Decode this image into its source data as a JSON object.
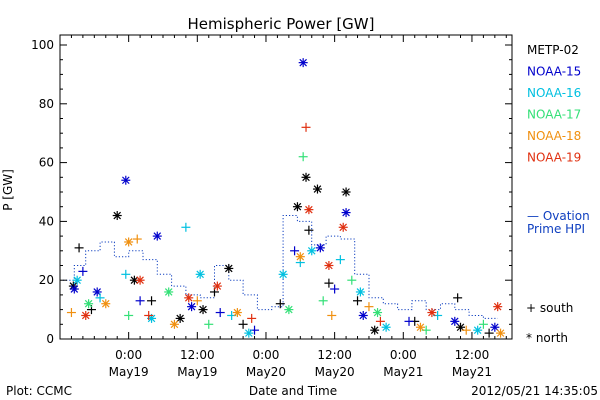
{
  "chart_data": {
    "type": "scatter",
    "title": "Hemispheric Power [GW]",
    "ylabel": "P [GW]",
    "xlabel": "Date and Time",
    "ylim": [
      0,
      100
    ],
    "yticks": [
      0,
      20,
      40,
      60,
      80,
      100
    ],
    "xticks": [
      {
        "t": "2012-05-19 00:00",
        "time": "0:00",
        "date": "May19"
      },
      {
        "t": "2012-05-19 12:00",
        "time": "12:00",
        "date": "May19"
      },
      {
        "t": "2012-05-20 00:00",
        "time": "0:00",
        "date": "May20"
      },
      {
        "t": "2012-05-20 12:00",
        "time": "12:00",
        "date": "May20"
      },
      {
        "t": "2012-05-21 00:00",
        "time": "0:00",
        "date": "May21"
      },
      {
        "t": "2012-05-21 12:00",
        "time": "12:00",
        "date": "May21"
      }
    ],
    "grid": false,
    "legend_position": "right",
    "series": [
      {
        "name": "METP-02",
        "color": "#000000",
        "points": [
          {
            "x": "2012-05-18 22:00",
            "y": 42,
            "m": "north"
          },
          {
            "x": "2012-05-18 15:20",
            "y": 31,
            "m": "south"
          },
          {
            "x": "2012-05-18 14:20",
            "y": 18,
            "m": "north"
          },
          {
            "x": "2012-05-18 17:30",
            "y": 10,
            "m": "south"
          },
          {
            "x": "2012-05-19 01:00",
            "y": 20,
            "m": "north"
          },
          {
            "x": "2012-05-19 04:00",
            "y": 13,
            "m": "south"
          },
          {
            "x": "2012-05-19 09:00",
            "y": 7,
            "m": "north"
          },
          {
            "x": "2012-05-19 15:00",
            "y": 16,
            "m": "south"
          },
          {
            "x": "2012-05-19 17:30",
            "y": 24,
            "m": "north"
          },
          {
            "x": "2012-05-19 20:00",
            "y": 5,
            "m": "south"
          },
          {
            "x": "2012-05-20 05:30",
            "y": 45,
            "m": "north"
          },
          {
            "x": "2012-05-20 07:00",
            "y": 55,
            "m": "north"
          },
          {
            "x": "2012-05-20 07:30",
            "y": 37,
            "m": "south"
          },
          {
            "x": "2012-05-20 09:00",
            "y": 51,
            "m": "north"
          },
          {
            "x": "2012-05-20 11:00",
            "y": 19,
            "m": "south"
          },
          {
            "x": "2012-05-20 14:00",
            "y": 50,
            "m": "north"
          },
          {
            "x": "2012-05-20 16:00",
            "y": 13,
            "m": "south"
          },
          {
            "x": "2012-05-20 19:00",
            "y": 3,
            "m": "north"
          },
          {
            "x": "2012-05-21 02:00",
            "y": 6,
            "m": "south"
          },
          {
            "x": "2012-05-21 10:00",
            "y": 4,
            "m": "north"
          },
          {
            "x": "2012-05-21 15:00",
            "y": 2,
            "m": "south"
          },
          {
            "x": "2012-05-21 09:30",
            "y": 14,
            "m": "south"
          },
          {
            "x": "2012-05-20 02:30",
            "y": 12,
            "m": "south"
          },
          {
            "x": "2012-05-19 13:00",
            "y": 10,
            "m": "north"
          }
        ]
      },
      {
        "name": "NOAA-15",
        "color": "#0000cc",
        "points": [
          {
            "x": "2012-05-18 23:30",
            "y": 54,
            "m": "north"
          },
          {
            "x": "2012-05-19 05:00",
            "y": 35,
            "m": "north"
          },
          {
            "x": "2012-05-18 14:30",
            "y": 17,
            "m": "north"
          },
          {
            "x": "2012-05-18 16:00",
            "y": 23,
            "m": "south"
          },
          {
            "x": "2012-05-18 18:30",
            "y": 16,
            "m": "north"
          },
          {
            "x": "2012-05-19 02:00",
            "y": 13,
            "m": "south"
          },
          {
            "x": "2012-05-19 11:00",
            "y": 11,
            "m": "north"
          },
          {
            "x": "2012-05-19 16:00",
            "y": 9,
            "m": "south"
          },
          {
            "x": "2012-05-20 05:00",
            "y": 30,
            "m": "south"
          },
          {
            "x": "2012-05-20 06:30",
            "y": 94,
            "m": "north"
          },
          {
            "x": "2012-05-20 09:30",
            "y": 31,
            "m": "north"
          },
          {
            "x": "2012-05-20 14:00",
            "y": 43,
            "m": "north"
          },
          {
            "x": "2012-05-20 12:00",
            "y": 17,
            "m": "south"
          },
          {
            "x": "2012-05-20 17:00",
            "y": 8,
            "m": "north"
          },
          {
            "x": "2012-05-21 01:00",
            "y": 6,
            "m": "south"
          },
          {
            "x": "2012-05-21 09:00",
            "y": 6,
            "m": "north"
          },
          {
            "x": "2012-05-21 16:00",
            "y": 4,
            "m": "north"
          },
          {
            "x": "2012-05-19 22:00",
            "y": 3,
            "m": "south"
          }
        ]
      },
      {
        "name": "NOAA-16",
        "color": "#00c0e0",
        "points": [
          {
            "x": "2012-05-18 23:30",
            "y": 22,
            "m": "south"
          },
          {
            "x": "2012-05-19 10:00",
            "y": 38,
            "m": "south"
          },
          {
            "x": "2012-05-18 15:00",
            "y": 20,
            "m": "north"
          },
          {
            "x": "2012-05-18 19:00",
            "y": 14,
            "m": "south"
          },
          {
            "x": "2012-05-19 04:00",
            "y": 7,
            "m": "north"
          },
          {
            "x": "2012-05-19 12:30",
            "y": 22,
            "m": "north"
          },
          {
            "x": "2012-05-19 18:00",
            "y": 8,
            "m": "south"
          },
          {
            "x": "2012-05-20 03:00",
            "y": 22,
            "m": "north"
          },
          {
            "x": "2012-05-20 06:00",
            "y": 26,
            "m": "south"
          },
          {
            "x": "2012-05-20 08:00",
            "y": 30,
            "m": "north"
          },
          {
            "x": "2012-05-20 13:00",
            "y": 27,
            "m": "south"
          },
          {
            "x": "2012-05-20 16:30",
            "y": 16,
            "m": "north"
          },
          {
            "x": "2012-05-20 21:00",
            "y": 4,
            "m": "north"
          },
          {
            "x": "2012-05-21 06:00",
            "y": 8,
            "m": "south"
          },
          {
            "x": "2012-05-21 13:00",
            "y": 3,
            "m": "north"
          },
          {
            "x": "2012-05-19 21:00",
            "y": 2,
            "m": "north"
          }
        ]
      },
      {
        "name": "NOAA-17",
        "color": "#33e077",
        "points": [
          {
            "x": "2012-05-20 06:30",
            "y": 62,
            "m": "south"
          },
          {
            "x": "2012-05-18 17:00",
            "y": 12,
            "m": "north"
          },
          {
            "x": "2012-05-19 00:00",
            "y": 8,
            "m": "south"
          },
          {
            "x": "2012-05-19 07:00",
            "y": 16,
            "m": "north"
          },
          {
            "x": "2012-05-19 14:00",
            "y": 5,
            "m": "south"
          },
          {
            "x": "2012-05-20 04:00",
            "y": 10,
            "m": "north"
          },
          {
            "x": "2012-05-20 10:00",
            "y": 13,
            "m": "south"
          },
          {
            "x": "2012-05-20 15:00",
            "y": 20,
            "m": "south"
          },
          {
            "x": "2012-05-20 19:30",
            "y": 9,
            "m": "north"
          },
          {
            "x": "2012-05-21 04:00",
            "y": 3,
            "m": "south"
          },
          {
            "x": "2012-05-21 14:00",
            "y": 5,
            "m": "south"
          }
        ]
      },
      {
        "name": "NOAA-18",
        "color": "#f09010",
        "points": [
          {
            "x": "2012-05-19 00:00",
            "y": 33,
            "m": "north"
          },
          {
            "x": "2012-05-19 01:30",
            "y": 34,
            "m": "south"
          },
          {
            "x": "2012-05-18 14:00",
            "y": 9,
            "m": "south"
          },
          {
            "x": "2012-05-18 20:00",
            "y": 12,
            "m": "north"
          },
          {
            "x": "2012-05-19 08:00",
            "y": 5,
            "m": "north"
          },
          {
            "x": "2012-05-19 12:00",
            "y": 13,
            "m": "south"
          },
          {
            "x": "2012-05-19 19:00",
            "y": 9,
            "m": "north"
          },
          {
            "x": "2012-05-20 06:00",
            "y": 28,
            "m": "north"
          },
          {
            "x": "2012-05-20 11:30",
            "y": 8,
            "m": "south"
          },
          {
            "x": "2012-05-20 18:00",
            "y": 11,
            "m": "south"
          },
          {
            "x": "2012-05-21 03:00",
            "y": 4,
            "m": "north"
          },
          {
            "x": "2012-05-21 11:00",
            "y": 3,
            "m": "south"
          },
          {
            "x": "2012-05-21 17:00",
            "y": 2,
            "m": "north"
          }
        ]
      },
      {
        "name": "NOAA-19",
        "color": "#e03010",
        "points": [
          {
            "x": "2012-05-20 07:00",
            "y": 72,
            "m": "south"
          },
          {
            "x": "2012-05-20 07:30",
            "y": 44,
            "m": "north"
          },
          {
            "x": "2012-05-19 02:00",
            "y": 20,
            "m": "north"
          },
          {
            "x": "2012-05-18 16:30",
            "y": 8,
            "m": "north"
          },
          {
            "x": "2012-05-19 03:30",
            "y": 8,
            "m": "south"
          },
          {
            "x": "2012-05-19 10:30",
            "y": 14,
            "m": "north"
          },
          {
            "x": "2012-05-19 15:30",
            "y": 18,
            "m": "north"
          },
          {
            "x": "2012-05-19 21:30",
            "y": 7,
            "m": "south"
          },
          {
            "x": "2012-05-20 11:00",
            "y": 25,
            "m": "north"
          },
          {
            "x": "2012-05-20 13:30",
            "y": 38,
            "m": "north"
          },
          {
            "x": "2012-05-20 20:00",
            "y": 6,
            "m": "south"
          },
          {
            "x": "2012-05-21 05:00",
            "y": 9,
            "m": "north"
          },
          {
            "x": "2012-05-21 16:30",
            "y": 11,
            "m": "north"
          }
        ]
      }
    ],
    "ovation": {
      "name_line1": "— Ovation",
      "name_line2": "Prime HPI",
      "color": "#1040c0",
      "steps": [
        {
          "x": "2012-05-18 12:30",
          "y": 20
        },
        {
          "x": "2012-05-18 14:30",
          "y": 25
        },
        {
          "x": "2012-05-18 16:30",
          "y": 30
        },
        {
          "x": "2012-05-18 19:00",
          "y": 33
        },
        {
          "x": "2012-05-18 21:30",
          "y": 28
        },
        {
          "x": "2012-05-19 00:00",
          "y": 30
        },
        {
          "x": "2012-05-19 02:30",
          "y": 27
        },
        {
          "x": "2012-05-19 05:00",
          "y": 22
        },
        {
          "x": "2012-05-19 07:30",
          "y": 18
        },
        {
          "x": "2012-05-19 10:00",
          "y": 15
        },
        {
          "x": "2012-05-19 12:30",
          "y": 14
        },
        {
          "x": "2012-05-19 15:00",
          "y": 25
        },
        {
          "x": "2012-05-19 17:30",
          "y": 20
        },
        {
          "x": "2012-05-19 20:00",
          "y": 15
        },
        {
          "x": "2012-05-19 22:30",
          "y": 10
        },
        {
          "x": "2012-05-20 01:00",
          "y": 11
        },
        {
          "x": "2012-05-20 03:00",
          "y": 42
        },
        {
          "x": "2012-05-20 05:30",
          "y": 40
        },
        {
          "x": "2012-05-20 08:00",
          "y": 32
        },
        {
          "x": "2012-05-20 10:30",
          "y": 35
        },
        {
          "x": "2012-05-20 13:00",
          "y": 34
        },
        {
          "x": "2012-05-20 15:30",
          "y": 22
        },
        {
          "x": "2012-05-20 18:00",
          "y": 14
        },
        {
          "x": "2012-05-20 20:30",
          "y": 12
        },
        {
          "x": "2012-05-20 23:00",
          "y": 10
        },
        {
          "x": "2012-05-21 01:30",
          "y": 13
        },
        {
          "x": "2012-05-21 04:00",
          "y": 10
        },
        {
          "x": "2012-05-21 06:30",
          "y": 12
        },
        {
          "x": "2012-05-21 09:00",
          "y": 10
        },
        {
          "x": "2012-05-21 11:30",
          "y": 8
        },
        {
          "x": "2012-05-21 14:00",
          "y": 7
        }
      ],
      "end": "2012-05-21 16:30"
    },
    "symbol_legend": [
      {
        "symbol": "+",
        "label": "south"
      },
      {
        "symbol": "*",
        "label": "north"
      }
    ]
  },
  "footer": {
    "left": "Plot: CCMC",
    "center": "Date and Time",
    "right": "2012/05/21 14:35:05"
  }
}
